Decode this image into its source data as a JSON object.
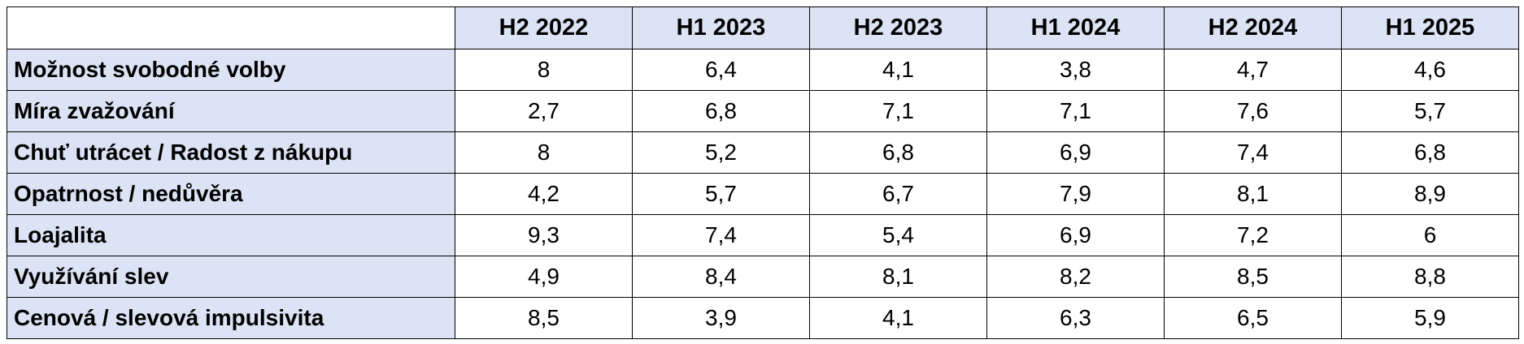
{
  "table": {
    "columns": [
      "H2 2022",
      "H1 2023",
      "H2 2023",
      "H1 2024",
      "H2 2024",
      "H1 2025"
    ],
    "rows": [
      {
        "label": "Možnost svobodné volby",
        "values": [
          "8",
          "6,4",
          "4,1",
          "3,8",
          "4,7",
          "4,6"
        ]
      },
      {
        "label": "Míra zvažování",
        "values": [
          "2,7",
          "6,8",
          "7,1",
          "7,1",
          "7,6",
          "5,7"
        ]
      },
      {
        "label": "Chuť utrácet / Radost z nákupu",
        "values": [
          "8",
          "5,2",
          "6,8",
          "6,9",
          "7,4",
          "6,8"
        ]
      },
      {
        "label": "Opatrnost / nedůvěra",
        "values": [
          "4,2",
          "5,7",
          "6,7",
          "7,9",
          "8,1",
          "8,9"
        ]
      },
      {
        "label": "Loajalita",
        "values": [
          "9,3",
          "7,4",
          "5,4",
          "6,9",
          "7,2",
          "6"
        ]
      },
      {
        "label": "Využívání slev",
        "values": [
          "4,9",
          "8,4",
          "8,1",
          "8,2",
          "8,5",
          "8,8"
        ]
      },
      {
        "label": "Cenová / slevová impulsivita",
        "values": [
          "8,5",
          "3,9",
          "4,1",
          "6,3",
          "6,5",
          "5,9"
        ]
      }
    ]
  },
  "colors": {
    "header_fill": "#dbe3f4",
    "border": "#000000",
    "cell_fill": "#ffffff"
  }
}
